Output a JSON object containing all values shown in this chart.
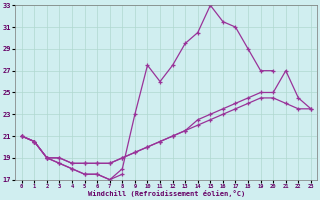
{
  "xlabel": "Windchill (Refroidissement éolien,°C)",
  "background_color": "#d0eef0",
  "grid_color": "#b0d8d0",
  "line_color": "#993399",
  "ylim": [
    17,
    33
  ],
  "yticks": [
    17,
    19,
    21,
    23,
    25,
    27,
    29,
    31,
    33
  ],
  "xlim": [
    -0.5,
    23.5
  ],
  "xticks": [
    0,
    1,
    2,
    3,
    4,
    5,
    6,
    7,
    8,
    9,
    10,
    11,
    12,
    13,
    14,
    15,
    16,
    17,
    18,
    19,
    20,
    21,
    22,
    23
  ],
  "series": [
    {
      "x": [
        0,
        1,
        2,
        3,
        4,
        5,
        6,
        7,
        8,
        9,
        10,
        11,
        12,
        13,
        14,
        15,
        16,
        17,
        18,
        19,
        20
      ],
      "y": [
        21,
        20.5,
        19,
        18.5,
        18,
        17.5,
        17.5,
        17.0,
        18.0,
        23.0,
        27.5,
        26.0,
        27.5,
        29.5,
        30.5,
        33.0,
        31.5,
        31.0,
        29.0,
        27.0,
        27.0
      ]
    },
    {
      "x": [
        0,
        1,
        2,
        3,
        4,
        5,
        6,
        7,
        8
      ],
      "y": [
        21,
        20.5,
        19,
        18.5,
        18.0,
        17.5,
        17.5,
        17.0,
        17.5
      ]
    },
    {
      "x": [
        0,
        1,
        2,
        3,
        4,
        5,
        6,
        7,
        8,
        9,
        10,
        11,
        12,
        13,
        14,
        15,
        16,
        17,
        18,
        19,
        20,
        21,
        22,
        23
      ],
      "y": [
        21,
        20.5,
        19,
        19.0,
        18.5,
        18.5,
        18.5,
        18.5,
        19.0,
        19.5,
        20.0,
        20.5,
        21.0,
        21.5,
        22.5,
        23.0,
        23.5,
        24.0,
        24.5,
        25.0,
        25.0,
        27.0,
        24.5,
        23.5
      ]
    },
    {
      "x": [
        0,
        1,
        2,
        3,
        4,
        5,
        6,
        7,
        8,
        9,
        10,
        11,
        12,
        13,
        14,
        15,
        16,
        17,
        18,
        19,
        20,
        21,
        22,
        23
      ],
      "y": [
        21,
        20.5,
        19,
        19.0,
        18.5,
        18.5,
        18.5,
        18.5,
        19.0,
        19.5,
        20.0,
        20.5,
        21.0,
        21.5,
        22.0,
        22.5,
        23.0,
        23.5,
        24.0,
        24.5,
        24.5,
        24.0,
        23.5,
        23.5
      ]
    }
  ]
}
